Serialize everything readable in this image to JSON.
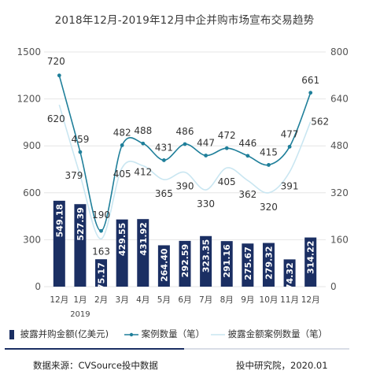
{
  "title": "2018年12月-2019年12月中企并购市场宣布交易趋势",
  "chart_data": {
    "type": "bar",
    "categories": [
      "12月",
      "1月",
      "2月",
      "3月",
      "4月",
      "5月",
      "6月",
      "7月",
      "8月",
      "9月",
      "10月",
      "11月",
      "12月"
    ],
    "year_label": "2019",
    "year_label_index": 1,
    "series": [
      {
        "name": "披露并购金额(亿美元)",
        "type": "bar",
        "axis": "left",
        "values": [
          549.18,
          527.39,
          175.17,
          429.55,
          431.92,
          264.4,
          292.59,
          323.35,
          291.16,
          275.67,
          279.32,
          174.32,
          314.22
        ],
        "value_labels": [
          "549.18",
          "527.39",
          "175.17",
          "429.55",
          "431.92",
          "264.40",
          "292.59",
          "323.35",
          "291.16",
          "275.67",
          "279.32",
          "174.32",
          "314.22"
        ]
      },
      {
        "name": "案例数量（笔）",
        "type": "line",
        "axis": "right",
        "values": [
          720,
          459,
          190,
          482,
          488,
          431,
          486,
          447,
          472,
          446,
          415,
          477,
          661
        ],
        "value_labels": [
          "720",
          "459",
          "190",
          "482",
          "488",
          "431",
          "486",
          "447",
          "472",
          "446",
          "415",
          "477",
          "661"
        ]
      },
      {
        "name": "披露金额案例数量（笔）",
        "type": "line",
        "axis": "right",
        "values": [
          620,
          379,
          163,
          405,
          412,
          365,
          390,
          330,
          405,
          362,
          320,
          391,
          562
        ],
        "value_labels": [
          "620",
          "379",
          "163",
          "405",
          "412",
          "365",
          "390",
          "330",
          "405",
          "362",
          "320",
          "391",
          "562"
        ]
      }
    ],
    "ylim_left": [
      0,
      1500
    ],
    "yticks_left": [
      "0",
      "300",
      "600",
      "900",
      "1200",
      "1500"
    ],
    "ylim_right": [
      0,
      800
    ],
    "yticks_right": [
      "0",
      "160",
      "320",
      "480",
      "640",
      "800"
    ],
    "grid": true,
    "legend_position": "bottom"
  },
  "colors": {
    "bar": "#1b2f63",
    "line_cases": "#1f7f9a",
    "line_disclosed": "#c9e6f1",
    "grid": "#e6e6e6"
  },
  "footer": {
    "source": "数据来源：CVSource投中数据",
    "credit": "投中研究院，2020.01"
  }
}
